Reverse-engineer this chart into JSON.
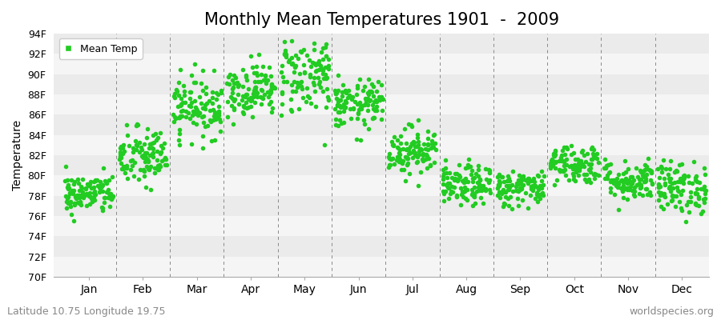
{
  "title": "Monthly Mean Temperatures 1901  -  2009",
  "ylabel": "Temperature",
  "ylim": [
    70,
    94
  ],
  "yticks": [
    70,
    72,
    74,
    76,
    78,
    80,
    82,
    84,
    86,
    88,
    90,
    92,
    94
  ],
  "ytick_labels": [
    "70F",
    "72F",
    "74F",
    "76F",
    "78F",
    "80F",
    "82F",
    "84F",
    "86F",
    "88F",
    "90F",
    "92F",
    "94F"
  ],
  "months": [
    "Jan",
    "Feb",
    "Mar",
    "Apr",
    "May",
    "Jun",
    "Jul",
    "Aug",
    "Sep",
    "Oct",
    "Nov",
    "Dec"
  ],
  "month_means": [
    78.2,
    81.8,
    86.8,
    88.5,
    90.0,
    87.0,
    82.5,
    79.0,
    78.8,
    81.2,
    79.5,
    78.8
  ],
  "month_stds": [
    1.0,
    1.5,
    1.5,
    1.3,
    2.0,
    1.2,
    1.2,
    1.0,
    0.9,
    1.0,
    1.0,
    1.3
  ],
  "n_years": 109,
  "marker_color": "#22CC22",
  "marker_size": 4,
  "bg_color": "#FFFFFF",
  "band_color_light": "#F5F5F5",
  "band_color_dark": "#EBEBEB",
  "legend_label": "Mean Temp",
  "footer_left": "Latitude 10.75 Longitude 19.75",
  "footer_right": "worldspecies.org",
  "footer_fontsize": 9,
  "title_fontsize": 15
}
